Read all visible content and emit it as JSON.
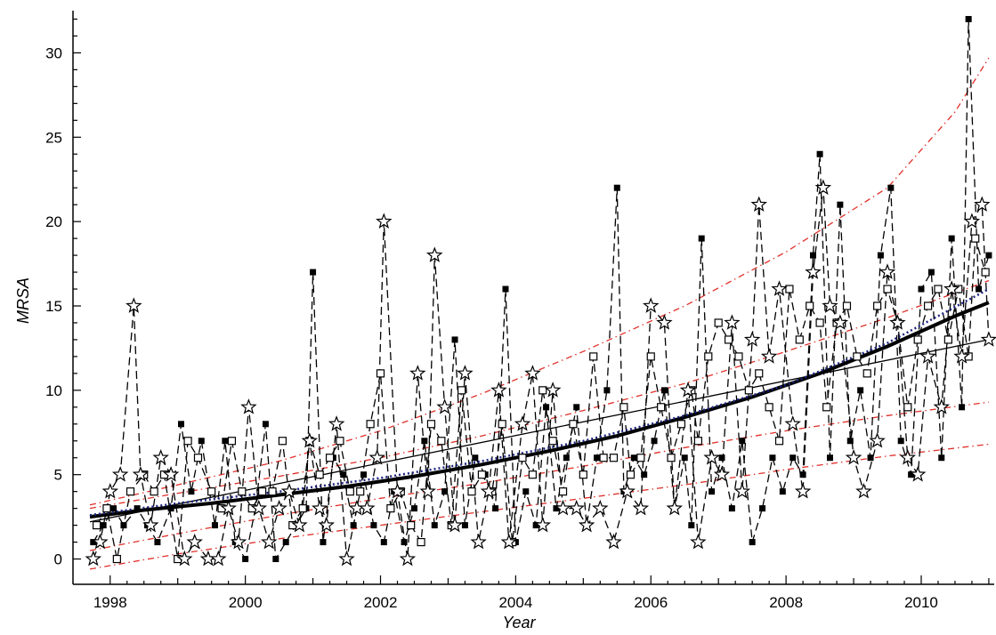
{
  "chart_data": {
    "type": "scatter",
    "title": "",
    "xlabel": "Year",
    "ylabel": "MRSA",
    "xlim": [
      1997.45,
      2011.08
    ],
    "ylim": [
      -1.5,
      32.5
    ],
    "x_ticks": [
      1998,
      2000,
      2002,
      2004,
      2006,
      2008,
      2010
    ],
    "y_ticks": [
      0,
      5,
      10,
      15,
      20,
      25,
      30
    ],
    "grid": false,
    "legend": "none",
    "colors": {
      "axis": "#000000",
      "observed": "#000000",
      "fit": "#000000",
      "bounds": "#e0302a",
      "dotted": "#1a237e"
    },
    "series": [
      {
        "marker": "filled-square",
        "x": [
          1997.75,
          1997.9,
          1998.05,
          1998.2,
          1998.4,
          1998.55,
          1998.7,
          1998.9,
          1999.05,
          1999.2,
          1999.35,
          1999.55,
          1999.7,
          1999.85,
          2000.0,
          2000.15,
          2000.3,
          2000.45,
          2000.6,
          2000.75,
          2000.9,
          2001.0,
          2001.15,
          2001.3,
          2001.45,
          2001.6,
          2001.75,
          2001.9,
          2002.05,
          2002.2,
          2002.35,
          2002.5,
          2002.65,
          2002.8,
          2002.95,
          2003.1,
          2003.25,
          2003.4,
          2003.55,
          2003.7,
          2003.85,
          2004.0,
          2004.15,
          2004.3,
          2004.45,
          2004.6,
          2004.75,
          2004.9,
          2005.05,
          2005.2,
          2005.35,
          2005.5,
          2005.6,
          2005.75,
          2005.9,
          2006.05,
          2006.2,
          2006.35,
          2006.5,
          2006.6,
          2006.75,
          2006.9,
          2007.05,
          2007.2,
          2007.35,
          2007.5,
          2007.65,
          2007.8,
          2007.95,
          2008.1,
          2008.25,
          2008.4,
          2008.5,
          2008.65,
          2008.8,
          2008.95,
          2009.1,
          2009.25,
          2009.4,
          2009.55,
          2009.7,
          2009.85,
          2010.0,
          2010.15,
          2010.3,
          2010.45,
          2010.6,
          2010.7,
          2010.85,
          2011.0
        ],
        "y": [
          1,
          2,
          3,
          2,
          3,
          2,
          1,
          3,
          8,
          4,
          7,
          2,
          7,
          1,
          0,
          3,
          8,
          0,
          1,
          2,
          3,
          17,
          1,
          6,
          5,
          2,
          5,
          2,
          1,
          4,
          1,
          3,
          7,
          2,
          4,
          13,
          2,
          6,
          5,
          3,
          16,
          1,
          4,
          2,
          9,
          3,
          6,
          9,
          2,
          6,
          10,
          22,
          4,
          6,
          5,
          7,
          10,
          3,
          6,
          2,
          19,
          4,
          6,
          3,
          7,
          1,
          3,
          6,
          4,
          6,
          5,
          18,
          24,
          6,
          21,
          7,
          10,
          6,
          18,
          22,
          7,
          5,
          16,
          17,
          6,
          19,
          9,
          32,
          16,
          18
        ]
      },
      {
        "marker": "open-square",
        "x": [
          1997.8,
          1997.95,
          1998.1,
          1998.3,
          1998.5,
          1998.65,
          1998.8,
          1999.0,
          1999.15,
          1999.3,
          1999.5,
          1999.65,
          1999.8,
          1999.95,
          2000.1,
          2000.25,
          2000.4,
          2000.55,
          2000.7,
          2000.85,
          2000.95,
          2001.1,
          2001.25,
          2001.4,
          2001.55,
          2001.7,
          2001.85,
          2002.0,
          2002.15,
          2002.3,
          2002.45,
          2002.6,
          2002.75,
          2002.9,
          2003.05,
          2003.2,
          2003.35,
          2003.5,
          2003.65,
          2003.8,
          2003.95,
          2004.1,
          2004.25,
          2004.4,
          2004.55,
          2004.7,
          2004.85,
          2005.0,
          2005.15,
          2005.3,
          2005.45,
          2005.6,
          2005.7,
          2005.85,
          2006.0,
          2006.15,
          2006.3,
          2006.45,
          2006.6,
          2006.7,
          2006.85,
          2007.0,
          2007.15,
          2007.3,
          2007.45,
          2007.6,
          2007.75,
          2007.9,
          2008.05,
          2008.2,
          2008.35,
          2008.5,
          2008.6,
          2008.75,
          2008.9,
          2009.05,
          2009.2,
          2009.35,
          2009.5,
          2009.65,
          2009.8,
          2009.95,
          2010.1,
          2010.25,
          2010.4,
          2010.55,
          2010.7,
          2010.8,
          2010.95
        ],
        "y": [
          2,
          3,
          0,
          4,
          5,
          4,
          5,
          0,
          7,
          6,
          4,
          3,
          7,
          4,
          3,
          4,
          4,
          7,
          2,
          3,
          7,
          5,
          6,
          7,
          4,
          4,
          8,
          11,
          3,
          4,
          2,
          1,
          8,
          7,
          2,
          10,
          4,
          5,
          4,
          8,
          1,
          6,
          5,
          10,
          7,
          4,
          8,
          5,
          12,
          6,
          6,
          9,
          5,
          6,
          12,
          9,
          6,
          8,
          10,
          7,
          12,
          14,
          13,
          12,
          10,
          11,
          9,
          7,
          16,
          13,
          15,
          14,
          9,
          14,
          15,
          12,
          11,
          15,
          16,
          14,
          9,
          13,
          15,
          16,
          13,
          16,
          12,
          19,
          17
        ]
      },
      {
        "marker": "open-star",
        "x": [
          1997.75,
          1997.85,
          1998.0,
          1998.15,
          1998.35,
          1998.45,
          1998.6,
          1998.75,
          1998.9,
          1999.1,
          1999.25,
          1999.45,
          1999.6,
          1999.75,
          1999.9,
          2000.05,
          2000.2,
          2000.35,
          2000.5,
          2000.65,
          2000.8,
          2000.95,
          2001.1,
          2001.2,
          2001.35,
          2001.5,
          2001.65,
          2001.8,
          2001.95,
          2002.05,
          2002.25,
          2002.4,
          2002.55,
          2002.7,
          2002.8,
          2002.95,
          2003.1,
          2003.25,
          2003.45,
          2003.6,
          2003.75,
          2003.9,
          2004.1,
          2004.25,
          2004.4,
          2004.55,
          2004.7,
          2004.9,
          2005.05,
          2005.25,
          2005.45,
          2005.65,
          2005.85,
          2006.0,
          2006.2,
          2006.35,
          2006.55,
          2006.7,
          2006.9,
          2007.05,
          2007.2,
          2007.35,
          2007.5,
          2007.6,
          2007.75,
          2007.9,
          2008.1,
          2008.25,
          2008.4,
          2008.55,
          2008.65,
          2008.8,
          2009.0,
          2009.15,
          2009.35,
          2009.5,
          2009.65,
          2009.8,
          2009.95,
          2010.1,
          2010.3,
          2010.45,
          2010.6,
          2010.75,
          2010.9,
          2011.0
        ],
        "y": [
          0,
          1,
          4,
          5,
          15,
          5,
          2,
          6,
          5,
          0,
          1,
          0,
          0,
          3,
          1,
          9,
          3,
          1,
          3,
          4,
          2,
          7,
          3,
          2,
          8,
          0,
          3,
          3,
          6,
          20,
          4,
          0,
          11,
          4,
          18,
          9,
          2,
          11,
          1,
          4,
          10,
          1,
          8,
          11,
          2,
          10,
          3,
          3,
          2,
          3,
          1,
          4,
          3,
          15,
          14,
          3,
          10,
          1,
          6,
          5,
          14,
          4,
          13,
          21,
          12,
          16,
          8,
          4,
          17,
          22,
          15,
          14,
          6,
          4,
          7,
          17,
          14,
          6,
          5,
          12,
          9,
          16,
          12,
          20,
          21,
          13
        ]
      },
      {
        "name": "fit",
        "style": "thick-solid",
        "x": [
          1997.7,
          1998.5,
          1999.5,
          2000.5,
          2001.5,
          2002.5,
          2003.5,
          2004.5,
          2005.5,
          2006.5,
          2007.5,
          2008.5,
          2009.5,
          2010.5,
          2011.0
        ],
        "y": [
          2.5,
          2.9,
          3.3,
          3.8,
          4.3,
          4.9,
          5.6,
          6.4,
          7.3,
          8.4,
          9.6,
          11.0,
          12.6,
          14.4,
          15.2
        ]
      },
      {
        "name": "linear",
        "style": "thin-solid",
        "x": [
          1997.7,
          2011.0
        ],
        "y": [
          2.2,
          13.0
        ]
      },
      {
        "name": "dotted-fit",
        "style": "dotted",
        "x": [
          1997.7,
          1999.0,
          2000.5,
          2002.0,
          2003.5,
          2005.0,
          2006.5,
          2008.0,
          2009.5,
          2011.0
        ],
        "y": [
          2.6,
          3.3,
          4.0,
          4.8,
          5.8,
          7.0,
          8.5,
          10.3,
          12.8,
          16.0
        ]
      },
      {
        "name": "upper-outer",
        "style": "red-dashed",
        "x": [
          1997.7,
          1999.0,
          2000.5,
          2002.0,
          2003.5,
          2005.0,
          2006.5,
          2008.0,
          2009.5,
          2010.5,
          2011.0
        ],
        "y": [
          3.2,
          4.4,
          5.8,
          7.6,
          9.8,
          12.3,
          15.0,
          18.2,
          22.0,
          26.5,
          29.7
        ]
      },
      {
        "name": "upper-inner",
        "style": "red-dashed",
        "x": [
          1997.7,
          1999.0,
          2000.5,
          2002.0,
          2003.5,
          2005.0,
          2006.5,
          2008.0,
          2009.5,
          2011.0
        ],
        "y": [
          3.0,
          3.9,
          4.9,
          6.0,
          7.3,
          8.8,
          10.4,
          12.3,
          14.3,
          16.5
        ]
      },
      {
        "name": "lower-inner",
        "style": "red-dashed",
        "x": [
          1997.7,
          1999.0,
          2000.5,
          2002.0,
          2003.5,
          2005.0,
          2006.5,
          2008.0,
          2009.5,
          2011.0
        ],
        "y": [
          0.5,
          1.5,
          2.6,
          3.6,
          4.5,
          5.5,
          6.6,
          7.6,
          8.5,
          9.3
        ]
      },
      {
        "name": "lower-outer",
        "style": "red-dashed",
        "x": [
          1997.7,
          1999.0,
          2000.5,
          2002.0,
          2003.5,
          2005.0,
          2006.5,
          2008.0,
          2009.5,
          2011.0
        ],
        "y": [
          -0.6,
          0.3,
          1.2,
          2.0,
          2.8,
          3.6,
          4.4,
          5.3,
          6.1,
          6.8
        ]
      }
    ]
  }
}
